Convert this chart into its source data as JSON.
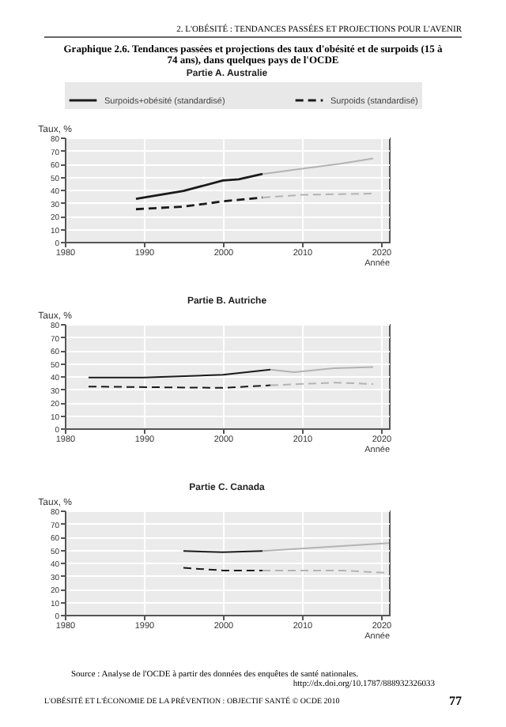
{
  "chart_data": [
    {
      "type": "line",
      "title": "Graphique 2.6. Tendances passées et projections des taux d'obésité et de surpoids (15 à 74 ans), dans quelques pays de l'OCDE",
      "subtitle": "Partie A. Australie",
      "xlabel": "Année",
      "ylabel": "Taux, %",
      "annotations": [
        "2. L'OBÉSITÉ : TENDANCES PASSÉES ET PROJECTIONS POUR L'AVENIR"
      ],
      "xlim": [
        1980,
        2021
      ],
      "xticks": [
        1980,
        1990,
        2000,
        2010,
        2020
      ],
      "ylim": [
        0,
        80
      ],
      "yticks": [
        0,
        10,
        20,
        30,
        40,
        50,
        60,
        70,
        80
      ],
      "grid": true,
      "legend": "top",
      "series": [
        {
          "name": "Surpoids+obésité (standardisé)",
          "color": "#1a1a1a",
          "line_style": "solid",
          "x": [
            1989,
            1995,
            2000,
            2002,
            2005
          ],
          "values": [
            33,
            39,
            47,
            48,
            52
          ]
        },
        {
          "name": "Surpoids (standardisé)",
          "color": "#1a1a1a",
          "line_style": "dashed",
          "x": [
            1989,
            1995,
            2000,
            2005
          ],
          "values": [
            25,
            27,
            31,
            34
          ]
        },
        {
          "color": "#b3b3b3",
          "line_style": "solid",
          "x": [
            2005,
            2010,
            2015,
            2019
          ],
          "values": [
            52,
            56,
            60,
            64
          ]
        },
        {
          "color": "#b3b3b3",
          "line_style": "dashed",
          "x": [
            2005,
            2010,
            2019
          ],
          "values": [
            34,
            36,
            37
          ]
        }
      ]
    },
    {
      "type": "line",
      "title": "Partie B. Autriche",
      "xlabel": "Année",
      "ylabel": "Taux, %",
      "xlim": [
        1980,
        2021
      ],
      "xticks": [
        1980,
        1990,
        2000,
        2010,
        2020
      ],
      "ylim": [
        0,
        80
      ],
      "yticks": [
        0,
        10,
        20,
        30,
        40,
        50,
        60,
        70,
        80
      ],
      "grid": true,
      "series": [
        {
          "color": "#1a1a1a",
          "line_style": "solid",
          "x": [
            1983,
            1990,
            2000,
            2006
          ],
          "values": [
            39,
            39,
            41,
            45
          ]
        },
        {
          "color": "#1a1a1a",
          "line_style": "dashed",
          "x": [
            1983,
            2000,
            2006
          ],
          "values": [
            32,
            31,
            33
          ]
        },
        {
          "color": "#b3b3b3",
          "line_style": "solid",
          "x": [
            2006,
            2009,
            2014,
            2019
          ],
          "values": [
            45,
            43,
            46,
            47
          ]
        },
        {
          "color": "#b3b3b3",
          "line_style": "dashed",
          "x": [
            2006,
            2014,
            2019
          ],
          "values": [
            33,
            35,
            34
          ]
        }
      ]
    },
    {
      "type": "line",
      "title": "Partie C. Canada",
      "xlabel": "Année",
      "ylabel": "Taux, %",
      "annotations": [
        "Source : Analyse de l'OCDE à partir des données des enquêtes de santé nationales.",
        "http://dx.doi.org/10.1787/888932326033",
        "L'OBÉSITÉ ET L'ÉCONOMIE DE LA PRÉVENTION : OBJECTIF SANTÉ © OCDE 2010",
        "77"
      ],
      "xlim": [
        1980,
        2021
      ],
      "xticks": [
        1980,
        1990,
        2000,
        2010,
        2020
      ],
      "ylim": [
        0,
        80
      ],
      "yticks": [
        0,
        10,
        20,
        30,
        40,
        50,
        60,
        70,
        80
      ],
      "grid": true,
      "series": [
        {
          "color": "#1a1a1a",
          "line_style": "solid",
          "x": [
            1995,
            2000,
            2005
          ],
          "values": [
            49,
            48,
            49
          ]
        },
        {
          "color": "#1a1a1a",
          "line_style": "dashed",
          "x": [
            1995,
            2000,
            2005
          ],
          "values": [
            36,
            34,
            34
          ]
        },
        {
          "color": "#b3b3b3",
          "line_style": "solid",
          "x": [
            2005,
            2013,
            2021
          ],
          "values": [
            49,
            52,
            55
          ]
        },
        {
          "color": "#b3b3b3",
          "line_style": "dashed",
          "x": [
            2005,
            2015,
            2021
          ],
          "values": [
            34,
            34,
            32
          ]
        }
      ]
    }
  ]
}
